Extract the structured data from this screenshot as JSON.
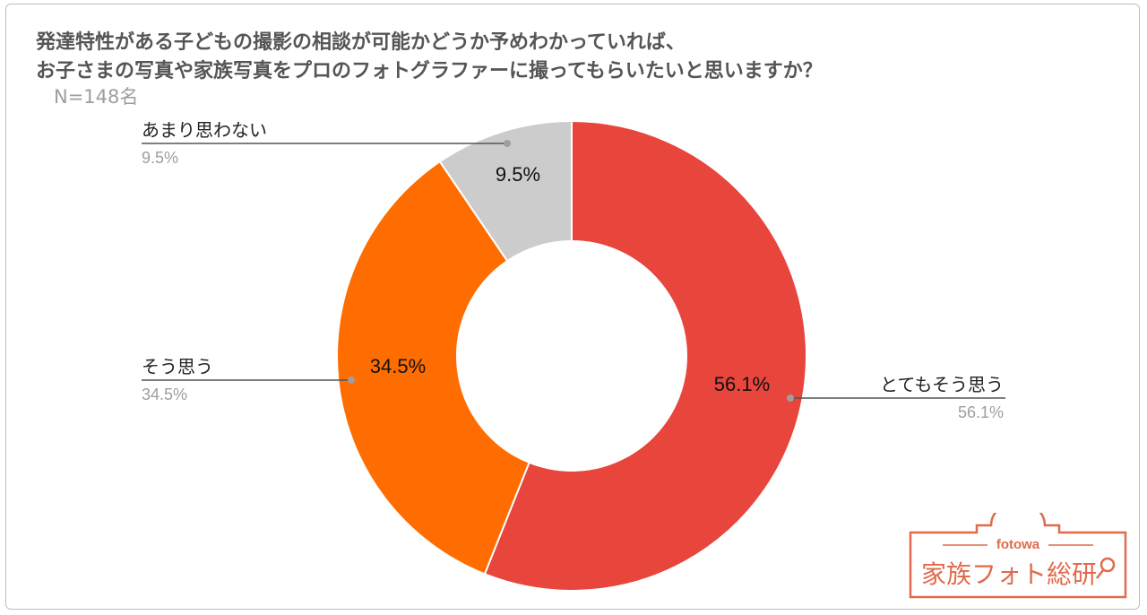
{
  "title": {
    "line1": "発達特性がある子どもの撮影の相談が可能かどうか予めわかっていれば、",
    "line2": "お子さまの写真や家族写真をプロのフォトグラファーに撮ってもらいたいと思いますか？"
  },
  "sample_size": "N=148名",
  "chart_data": {
    "type": "pie",
    "donut": true,
    "slices": [
      {
        "label": "とてもそう思う",
        "value": 56.1,
        "display": "56.1%",
        "color": "#E8453C"
      },
      {
        "label": "そう思う",
        "value": 34.5,
        "display": "34.5%",
        "color": "#FF6D01"
      },
      {
        "label": "あまり思わない",
        "value": 9.5,
        "display": "9.5%",
        "color": "#CCCCCC"
      }
    ]
  },
  "logo": {
    "brand": "fotowa",
    "name": "家族フォト総研",
    "color": "#E06A4B"
  }
}
